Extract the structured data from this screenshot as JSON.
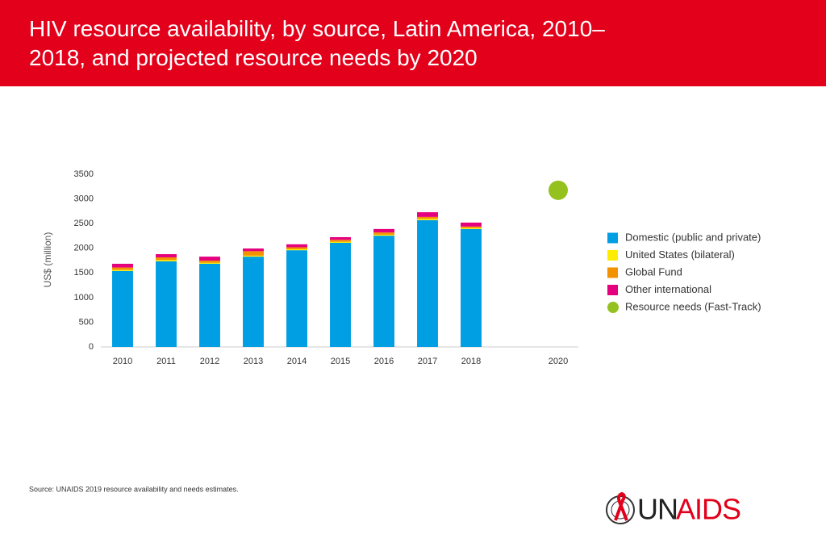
{
  "chart_data": {
    "type": "bar",
    "stacked": true,
    "title": "HIV resource availability, by source, Latin America, 2010–2018, and projected resource needs by 2020",
    "y_label": "US$ (million)",
    "categories": [
      "2010",
      "2011",
      "2012",
      "2013",
      "2014",
      "2015",
      "2016",
      "2017",
      "2018",
      null,
      "2020"
    ],
    "series": [
      {
        "name": "Domestic (public and private)",
        "color": "#009fe3",
        "values": [
          1540,
          1735,
          1685,
          1830,
          1960,
          2110,
          2255,
          2570,
          2390,
          null,
          null
        ]
      },
      {
        "name": "United States (bilateral)",
        "color": "#ffed00",
        "values": [
          20,
          25,
          20,
          20,
          20,
          20,
          20,
          25,
          20,
          null,
          null
        ]
      },
      {
        "name": "Global Fund",
        "color": "#f39200",
        "values": [
          50,
          55,
          45,
          90,
          40,
          40,
          45,
          40,
          30,
          null,
          null
        ]
      },
      {
        "name": "Other international",
        "color": "#e5007d",
        "values": [
          75,
          65,
          80,
          55,
          60,
          55,
          70,
          95,
          80,
          null,
          null
        ]
      },
      {
        "name": "Resource needs (Fast-Track)",
        "color": "#95c11f",
        "type": "scatter",
        "values": [
          null,
          null,
          null,
          null,
          null,
          null,
          null,
          null,
          null,
          null,
          3175
        ]
      }
    ],
    "ylim": [
      0,
      3500
    ],
    "yticks": [
      0,
      500,
      1000,
      1500,
      2000,
      2500,
      3000,
      3500
    ],
    "grid": false,
    "legend": "right",
    "source": "Source: UNAIDS 2019 resource availability and needs estimates."
  },
  "logo": {
    "left": "UN",
    "right": "AIDS"
  }
}
